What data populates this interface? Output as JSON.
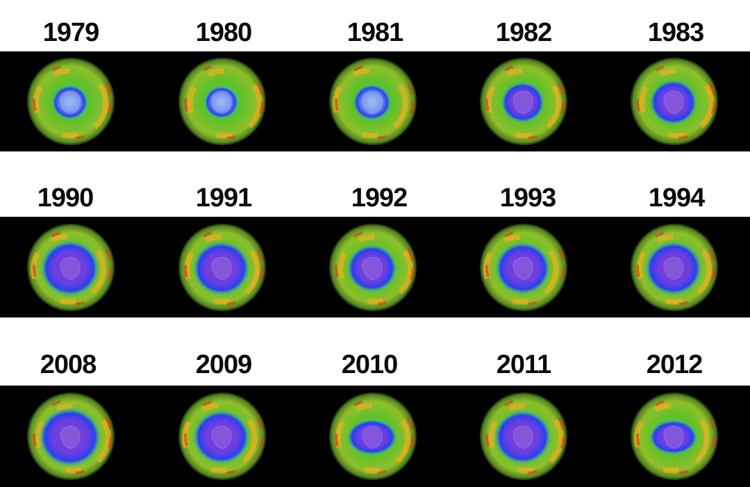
{
  "rows": [
    {
      "years": [
        "1979",
        "1980",
        "1981",
        "1982",
        "1983"
      ]
    },
    {
      "years": [
        "1990",
        "1991",
        "1992",
        "1993",
        "1994"
      ]
    },
    {
      "years": [
        "2008",
        "2009",
        "2010",
        "2011",
        "2012"
      ]
    }
  ],
  "colors": {
    "background": "#ffffff",
    "band": "#000000",
    "low_ozone": "#7a3fd1",
    "mid_low": "#2a3ff0",
    "mid": "#22d3b0",
    "normal": "#5ec12a",
    "high": "#e8b020",
    "very_high": "#d8401a"
  }
}
